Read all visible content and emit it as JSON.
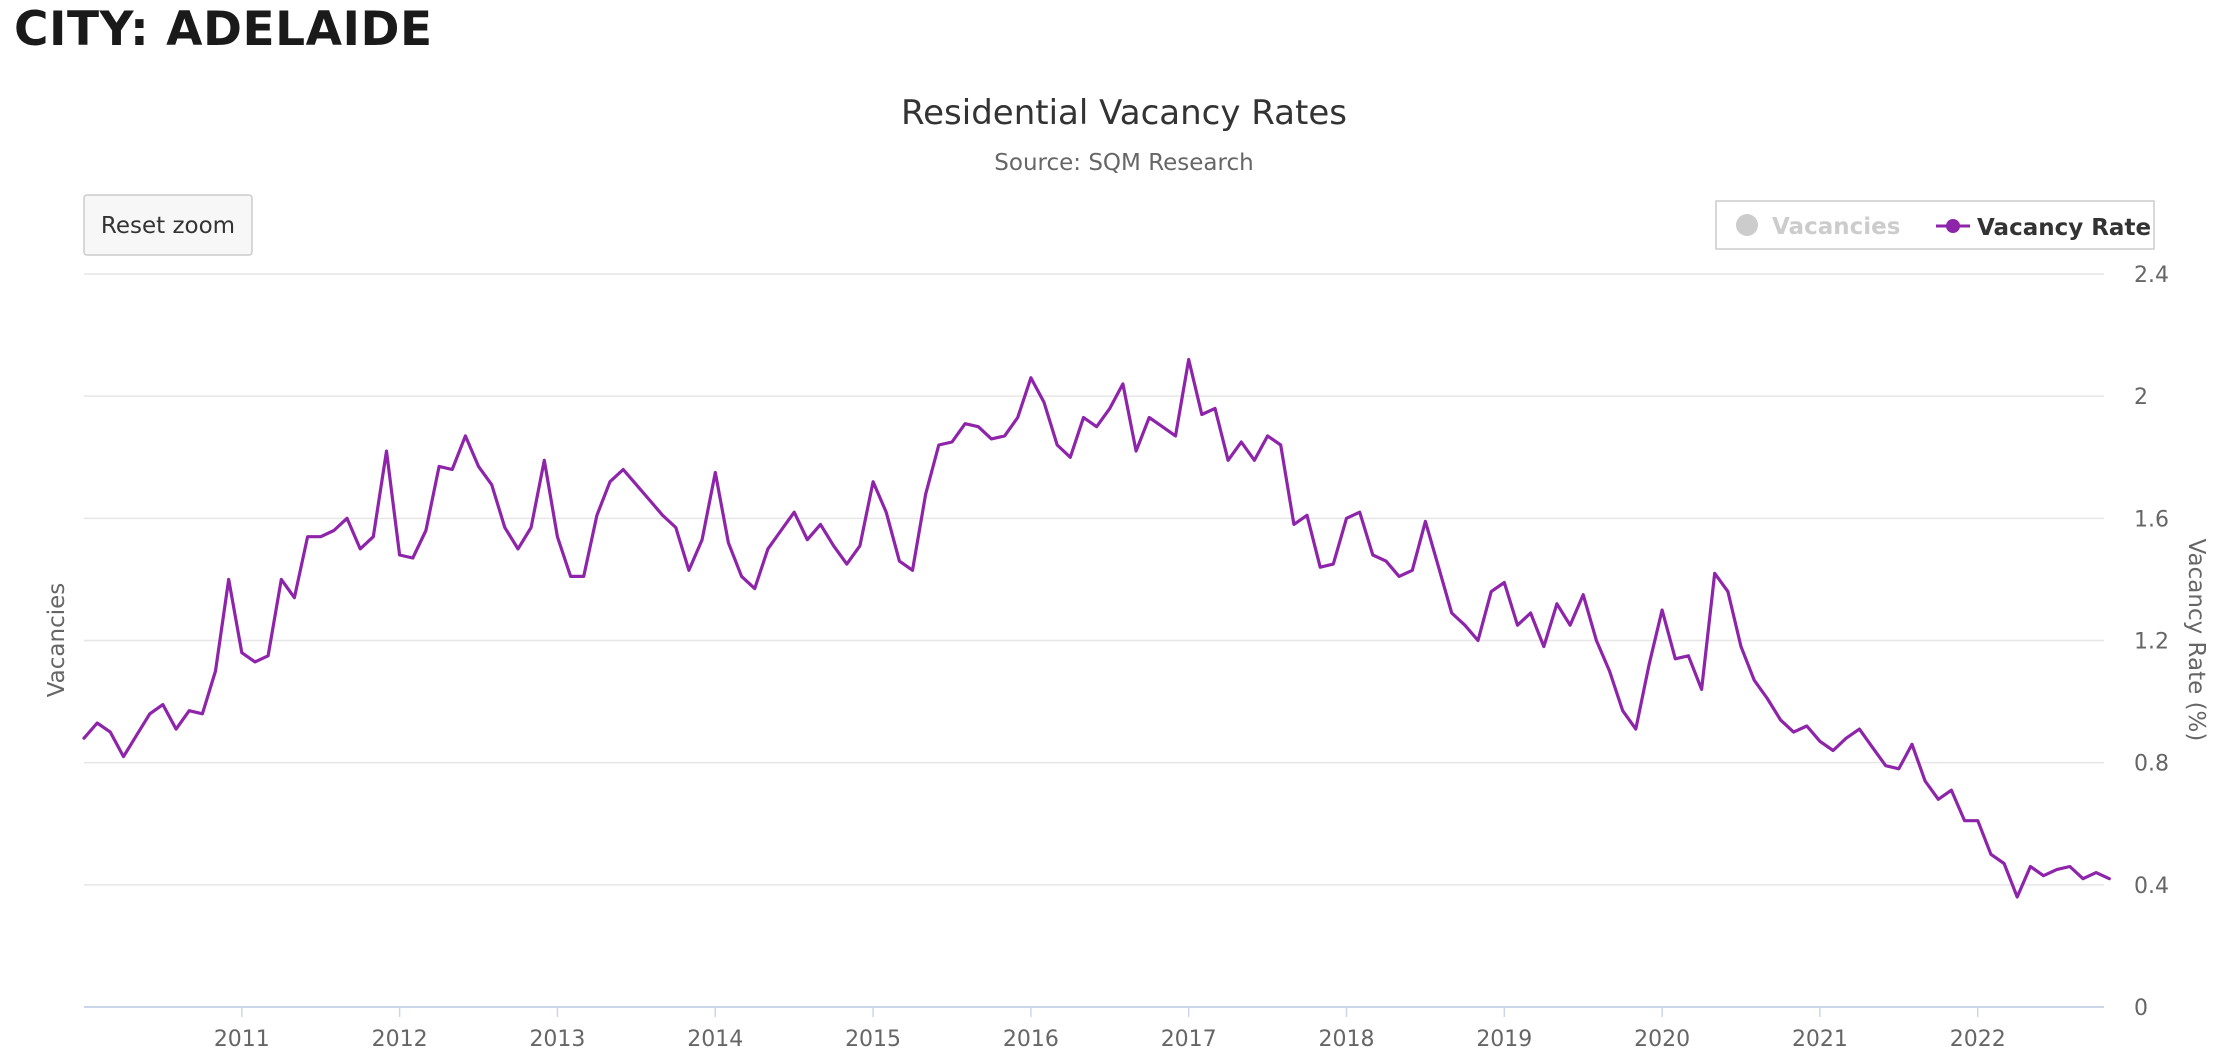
{
  "page": {
    "city_title": "CITY: ADELAIDE"
  },
  "controls": {
    "reset_zoom_label": "Reset zoom"
  },
  "colors": {
    "series": "#8e24aa",
    "hidden_legend": "#cccccc",
    "grid": "#e6e6e6",
    "axis_text": "#666666",
    "title_text": "#333333"
  },
  "chart_data": {
    "type": "line",
    "title": "Residential Vacancy Rates",
    "subtitle": "Source: SQM Research",
    "ylabel_left": "Vacancies",
    "ylabel_right": "Vacancy Rate (%)",
    "y_ticks": [
      "0",
      "0.4",
      "0.8",
      "1.2",
      "1.6",
      "2",
      "2.4"
    ],
    "ylim": [
      0,
      2.4
    ],
    "x_ticks": [
      "2011",
      "2012",
      "2013",
      "2014",
      "2015",
      "2016",
      "2017",
      "2018",
      "2019",
      "2020",
      "2021",
      "2022"
    ],
    "xlim": [
      2010.0,
      2022.8
    ],
    "legend": {
      "position": "top-right",
      "items": [
        {
          "label": "Vacancies",
          "visible": false
        },
        {
          "label": "Vacancy Rate",
          "visible": true
        }
      ]
    },
    "series": [
      {
        "name": "Vacancy Rate",
        "start_year": 2010.0,
        "step_months": 1,
        "values": [
          0.88,
          0.93,
          0.9,
          0.82,
          0.89,
          0.96,
          0.99,
          0.91,
          0.97,
          0.96,
          1.1,
          1.4,
          1.16,
          1.13,
          1.15,
          1.4,
          1.34,
          1.54,
          1.54,
          1.56,
          1.6,
          1.5,
          1.54,
          1.82,
          1.48,
          1.47,
          1.56,
          1.77,
          1.76,
          1.87,
          1.77,
          1.71,
          1.57,
          1.5,
          1.57,
          1.79,
          1.54,
          1.41,
          1.41,
          1.61,
          1.72,
          1.76,
          1.71,
          1.66,
          1.61,
          1.57,
          1.43,
          1.53,
          1.75,
          1.52,
          1.41,
          1.37,
          1.5,
          1.56,
          1.62,
          1.53,
          1.58,
          1.51,
          1.45,
          1.51,
          1.72,
          1.62,
          1.46,
          1.43,
          1.68,
          1.84,
          1.85,
          1.91,
          1.9,
          1.86,
          1.87,
          1.93,
          2.06,
          1.98,
          1.84,
          1.8,
          1.93,
          1.9,
          1.96,
          2.04,
          1.82,
          1.93,
          1.9,
          1.87,
          2.12,
          1.94,
          1.96,
          1.79,
          1.85,
          1.79,
          1.87,
          1.84,
          1.58,
          1.61,
          1.44,
          1.45,
          1.6,
          1.62,
          1.48,
          1.46,
          1.41,
          1.43,
          1.59,
          1.44,
          1.29,
          1.25,
          1.2,
          1.36,
          1.39,
          1.25,
          1.29,
          1.18,
          1.32,
          1.25,
          1.35,
          1.2,
          1.1,
          0.97,
          0.91,
          1.12,
          1.3,
          1.14,
          1.15,
          1.04,
          1.42,
          1.36,
          1.18,
          1.07,
          1.01,
          0.94,
          0.9,
          0.92,
          0.87,
          0.84,
          0.88,
          0.91,
          0.85,
          0.79,
          0.78,
          0.86,
          0.74,
          0.68,
          0.71,
          0.61,
          0.61,
          0.5,
          0.47,
          0.36,
          0.46,
          0.43,
          0.45,
          0.46,
          0.42,
          0.44,
          0.42
        ]
      }
    ]
  }
}
